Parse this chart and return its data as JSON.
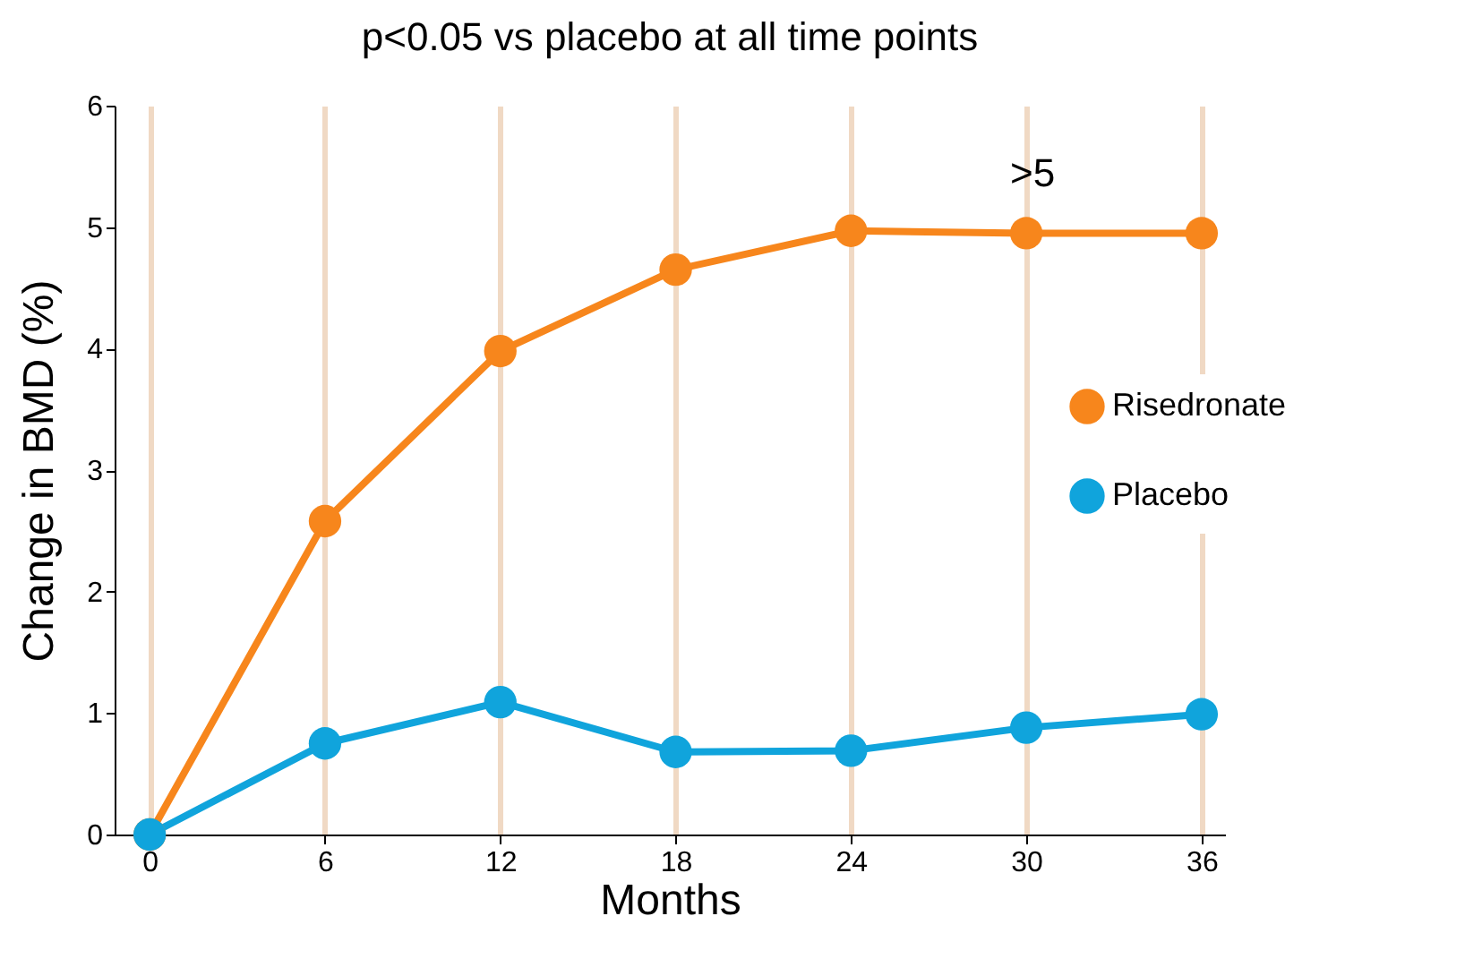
{
  "chart_data": {
    "type": "line",
    "title": "p<0.05 vs placebo at all time points",
    "xlabel": "Months",
    "ylabel": "Change in BMD (%)",
    "x": [
      0,
      6,
      12,
      18,
      24,
      30,
      36
    ],
    "series": [
      {
        "name": "Risedronate",
        "color": "#f7861c",
        "values": [
          0,
          2.58,
          3.98,
          4.65,
          4.97,
          4.95,
          4.95
        ]
      },
      {
        "name": "Placebo",
        "color": "#10a4dc",
        "values": [
          0,
          0.75,
          1.09,
          0.68,
          0.69,
          0.88,
          0.99
        ]
      }
    ],
    "xlim": [
      -1.2,
      36.8
    ],
    "xticks": [
      0,
      6,
      12,
      18,
      24,
      30,
      36
    ],
    "ylim": [
      0,
      6
    ],
    "yticks": [
      0,
      1,
      2,
      3,
      4,
      5,
      6
    ],
    "grid": "x",
    "legend": "right",
    "marker": "circle",
    "annotations": [
      ">5"
    ]
  }
}
